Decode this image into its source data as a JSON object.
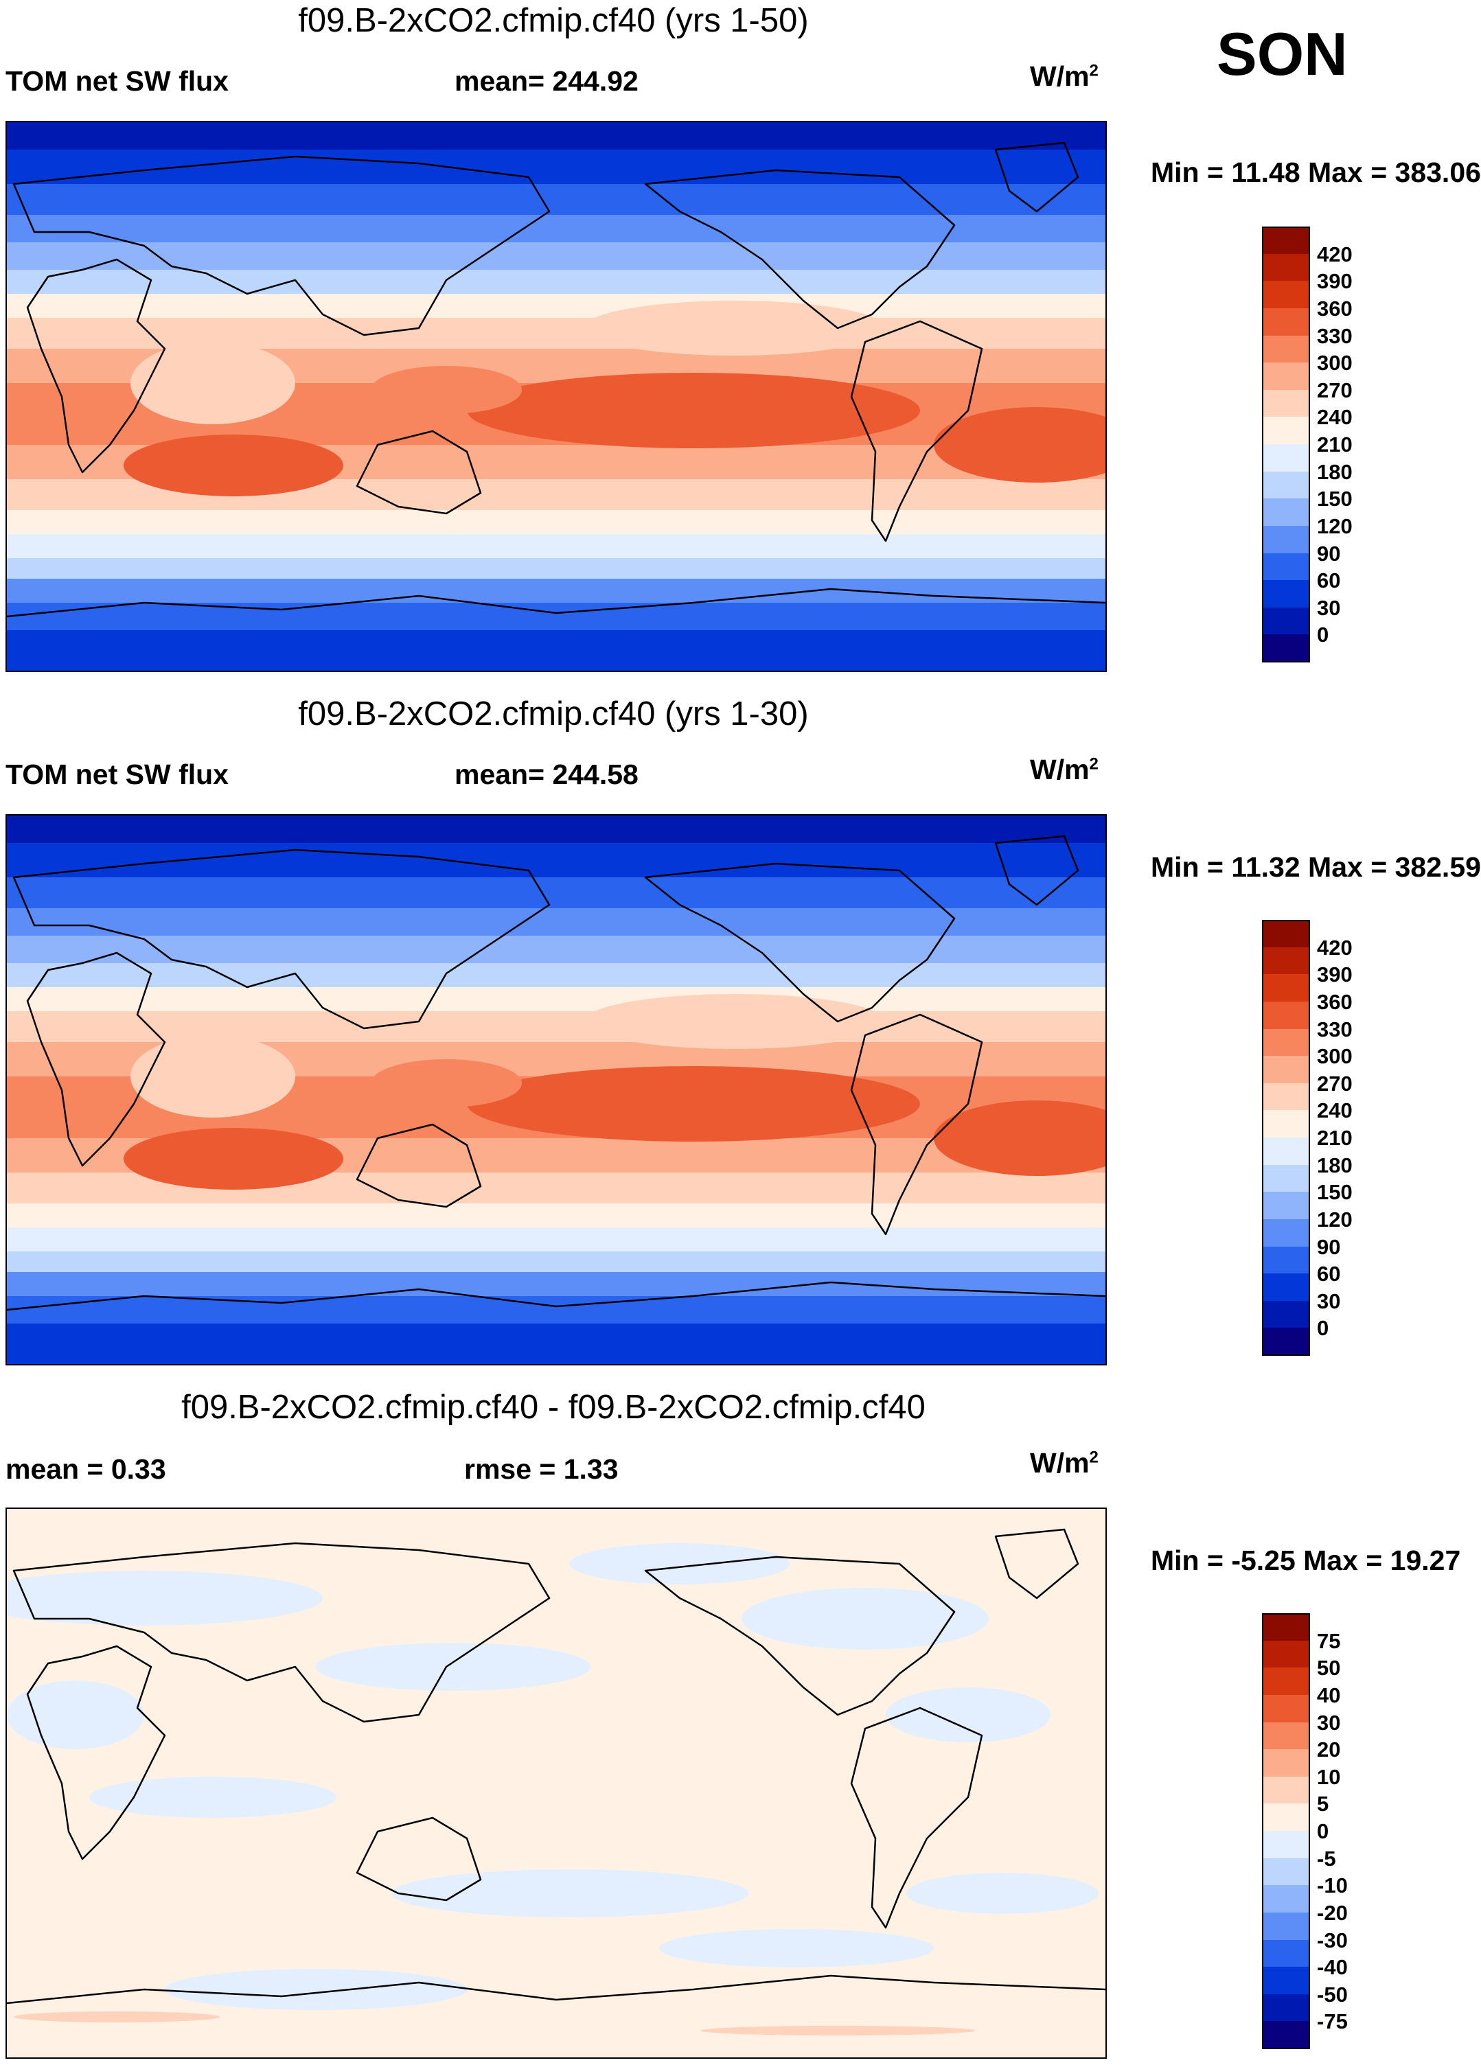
{
  "season": "SON",
  "panels": [
    {
      "title": "f09.B-2xCO2.cfmip.cf40 (yrs 1-50)",
      "left_label": "TOM net SW flux",
      "center_label": "mean= 244.92",
      "units_base": "W/m",
      "units_exp": "2",
      "minmax": "Min =  11.48 Max = 383.06",
      "field": "absolute",
      "colorbar": {
        "colors": [
          "#08007f",
          "#0019b0",
          "#0437d8",
          "#2a63ee",
          "#5d8ef7",
          "#90b4fb",
          "#bcd6fd",
          "#e3efff",
          "#fff2e4",
          "#ffd3bb",
          "#fcad8b",
          "#f7865e",
          "#ec5a31",
          "#d83810",
          "#b81f04",
          "#8c0b00"
        ],
        "labels": [
          "0",
          "30",
          "60",
          "90",
          "120",
          "150",
          "180",
          "210",
          "240",
          "270",
          "300",
          "330",
          "360",
          "390",
          "420"
        ]
      }
    },
    {
      "title": "f09.B-2xCO2.cfmip.cf40 (yrs 1-30)",
      "left_label": "TOM net SW flux",
      "center_label": "mean= 244.58",
      "units_base": "W/m",
      "units_exp": "2",
      "minmax": "Min =  11.32 Max = 382.59",
      "field": "absolute",
      "colorbar": {
        "colors": [
          "#08007f",
          "#0019b0",
          "#0437d8",
          "#2a63ee",
          "#5d8ef7",
          "#90b4fb",
          "#bcd6fd",
          "#e3efff",
          "#fff2e4",
          "#ffd3bb",
          "#fcad8b",
          "#f7865e",
          "#ec5a31",
          "#d83810",
          "#b81f04",
          "#8c0b00"
        ],
        "labels": [
          "0",
          "30",
          "60",
          "90",
          "120",
          "150",
          "180",
          "210",
          "240",
          "270",
          "300",
          "330",
          "360",
          "390",
          "420"
        ]
      }
    },
    {
      "title": "f09.B-2xCO2.cfmip.cf40 - f09.B-2xCO2.cfmip.cf40",
      "left_label": "mean =   0.33",
      "center_label": "rmse =   1.33",
      "units_base": "W/m",
      "units_exp": "2",
      "minmax": "Min =  -5.25 Max =  19.27",
      "field": "difference",
      "colorbar": {
        "colors": [
          "#08007f",
          "#0019b0",
          "#0437d8",
          "#2a63ee",
          "#5d8ef7",
          "#90b4fb",
          "#bcd6fd",
          "#e3efff",
          "#fff2e4",
          "#ffd3bb",
          "#fcad8b",
          "#f7865e",
          "#ec5a31",
          "#d83810",
          "#b81f04",
          "#8c0b00"
        ],
        "labels": [
          "-75",
          "-50",
          "-40",
          "-30",
          "-20",
          "-10",
          "-5",
          "0",
          "5",
          "10",
          "20",
          "30",
          "40",
          "50",
          "75"
        ]
      }
    }
  ]
}
